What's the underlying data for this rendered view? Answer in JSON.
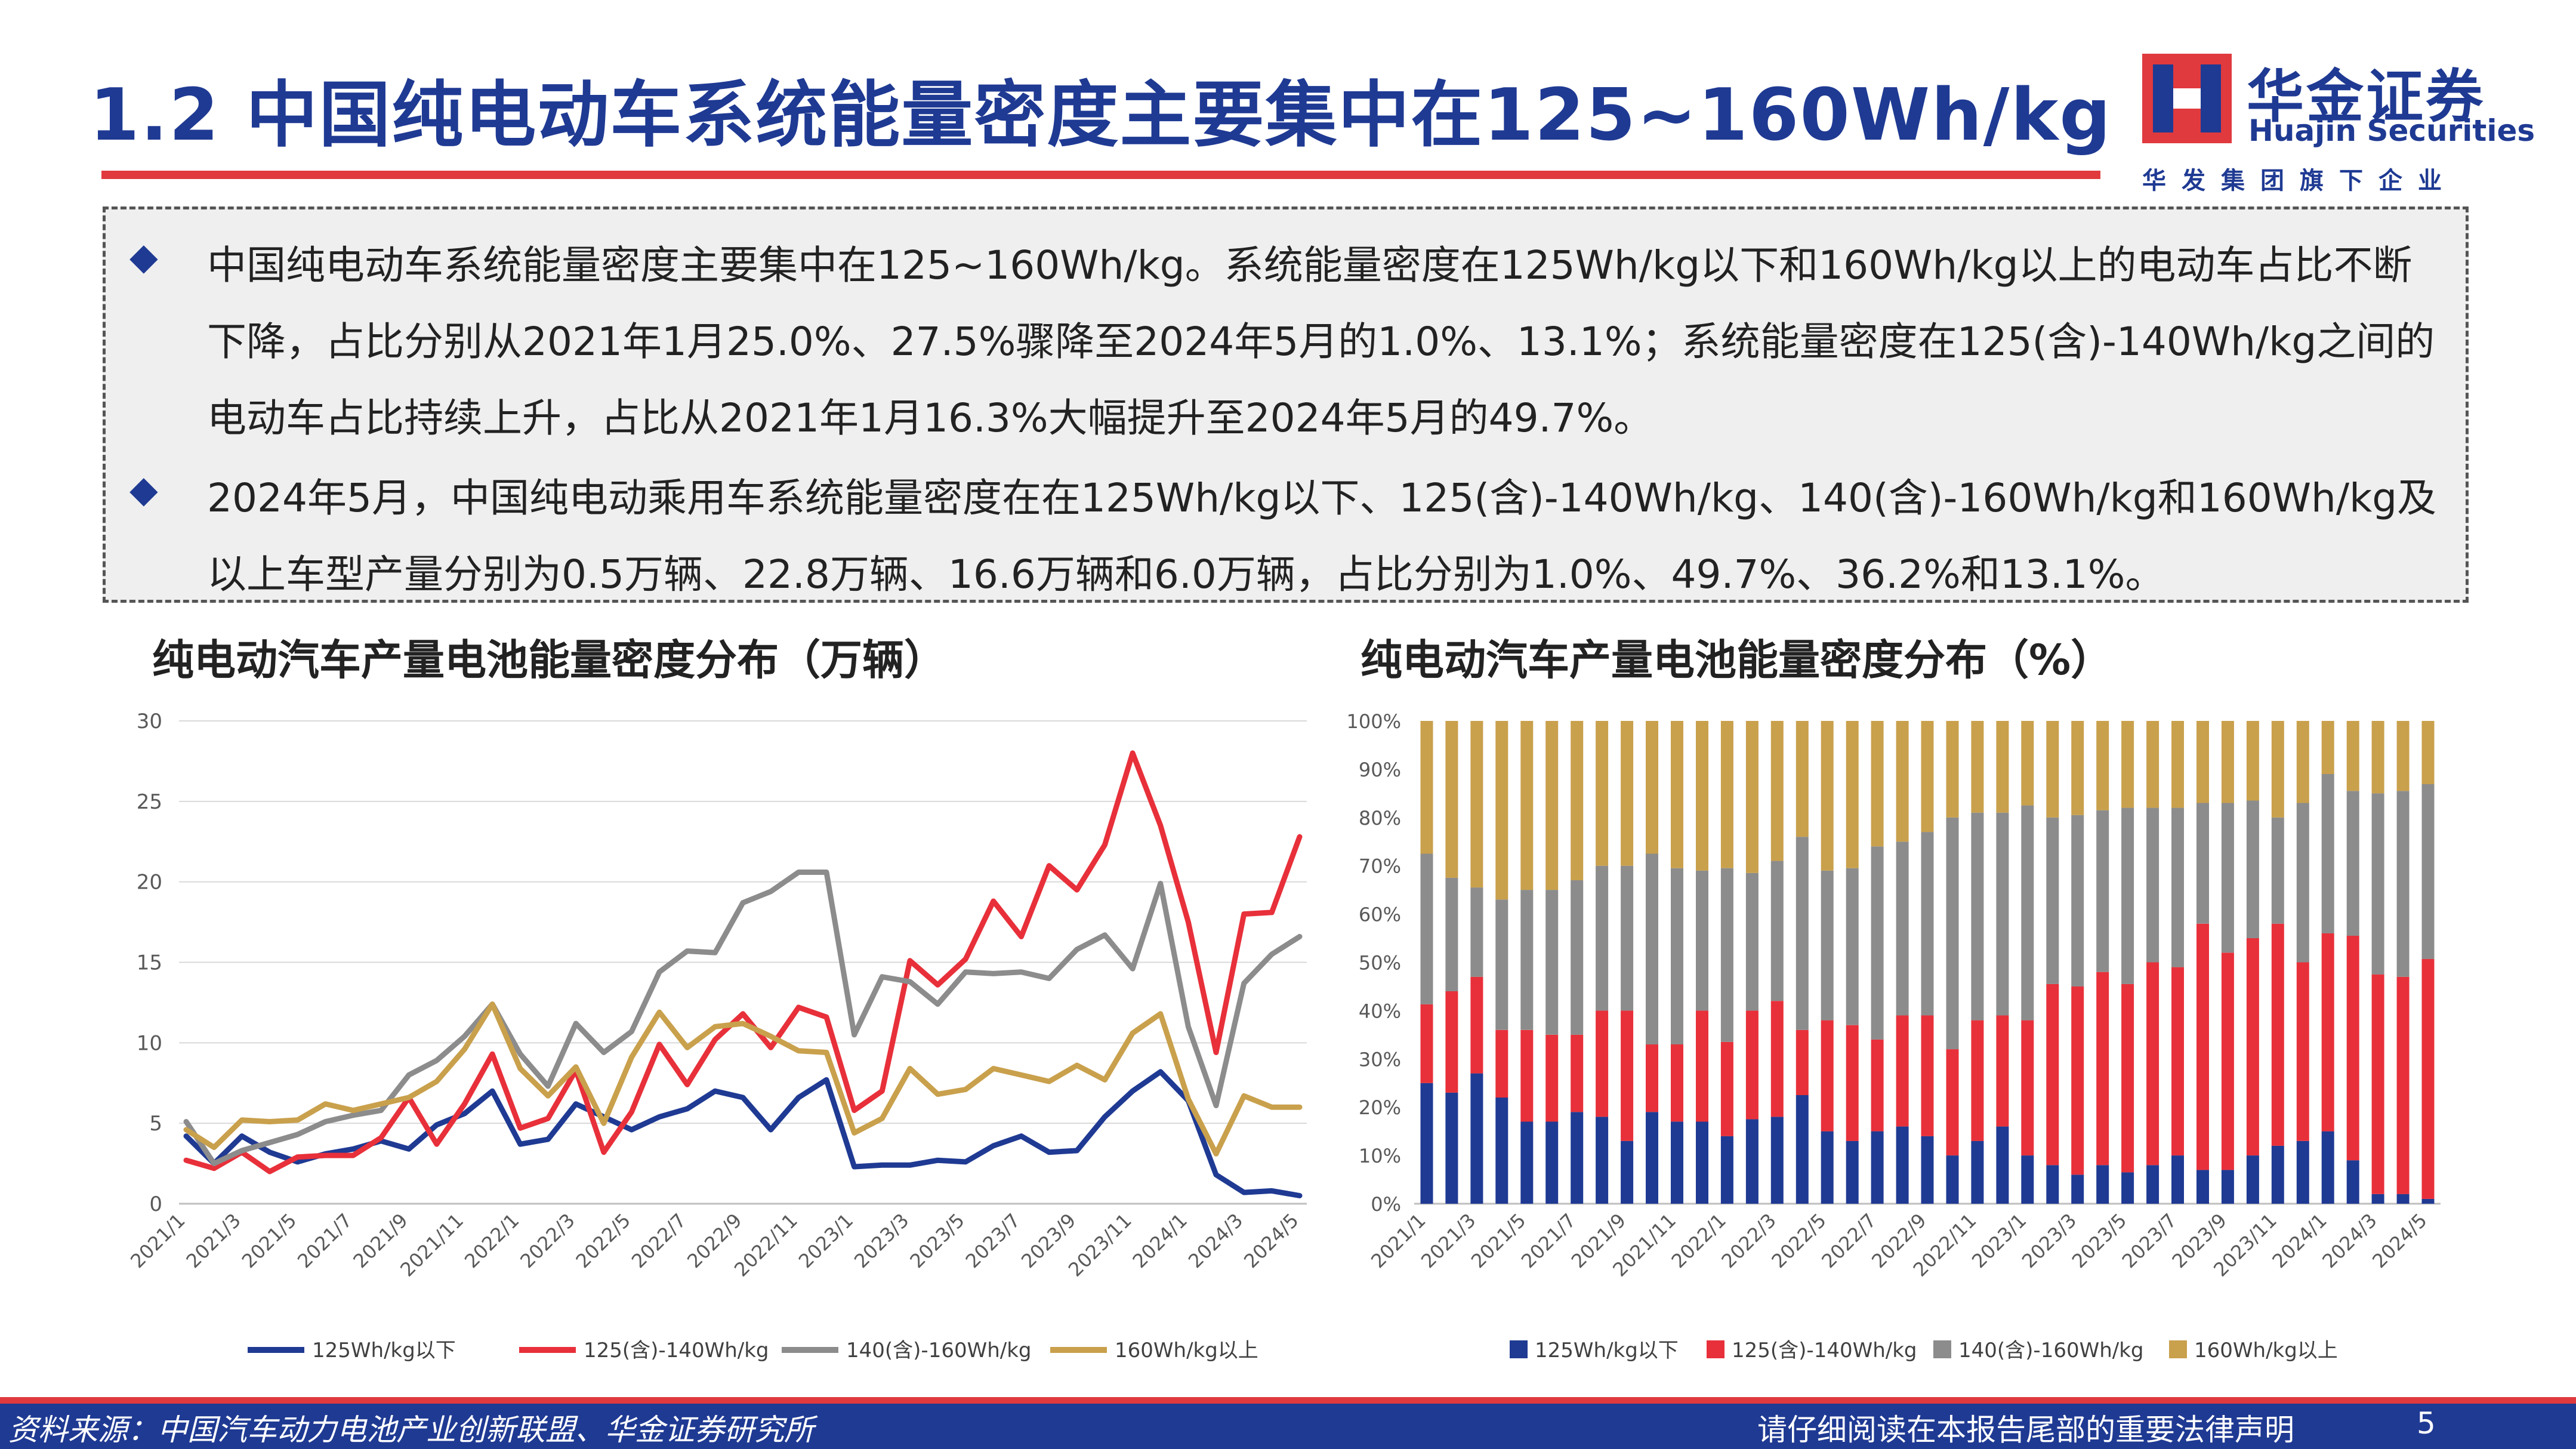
{
  "header": {
    "title": "1.2 中国纯电动车系统能量密度主要集中在125~160Wh/kg",
    "logo_cn": "华金证券",
    "logo_en": "Huajin Securities",
    "logo_sub": "华发集团旗下企业"
  },
  "summary": {
    "bullet1": "中国纯电动车系统能量密度主要集中在125~160Wh/kg。系统能量密度在125Wh/kg以下和160Wh/kg以上的电动车占比不断下降，占比分别从2021年1月25.0%、27.5%骤降至2024年5月的1.0%、13.1%；系统能量密度在125(含)-140Wh/kg之间的电动车占比持续上升，占比从2021年1月16.3%大幅提升至2024年5月的49.7%。",
    "bullet2": "2024年5月，中国纯电动乘用车系统能量密度在在125Wh/kg以下、125(含)-140Wh/kg、140(含)-160Wh/kg和160Wh/kg及以上车型产量分别为0.5万辆、22.8万辆、16.6万辆和6.0万辆，占比分别为1.0%、49.7%、36.2%和13.1%。"
  },
  "footer": {
    "source": "资料来源：中国汽车动力电池产业创新联盟、华金证券研究所",
    "legal": "请仔细阅读在本报告尾部的重要法律声明",
    "page": "5"
  },
  "colors": {
    "blue": "#1f3a93",
    "red": "#e8303a",
    "gray": "#8c8c8c",
    "gold": "#c9a04c"
  },
  "chart_data": [
    {
      "type": "line",
      "title": "纯电动汽车产量电池能量密度分布（万辆）",
      "xlabel": "",
      "ylabel": "",
      "ylim": [
        0,
        30
      ],
      "yticks": [
        "0",
        "5",
        "10",
        "15",
        "20",
        "25",
        "30"
      ],
      "categories": [
        "2021/1",
        "2021/2",
        "2021/3",
        "2021/4",
        "2021/5",
        "2021/6",
        "2021/7",
        "2021/8",
        "2021/9",
        "2021/10",
        "2021/11",
        "2021/12",
        "2022/1",
        "2022/2",
        "2022/3",
        "2022/4",
        "2022/5",
        "2022/6",
        "2022/7",
        "2022/8",
        "2022/9",
        "2022/10",
        "2022/11",
        "2022/12",
        "2023/1",
        "2023/2",
        "2023/3",
        "2023/4",
        "2023/5",
        "2023/6",
        "2023/7",
        "2023/8",
        "2023/9",
        "2023/10",
        "2023/11",
        "2023/12",
        "2024/1",
        "2024/2",
        "2024/3",
        "2024/4",
        "2024/5"
      ],
      "xtick_labels": [
        "2021/1",
        "2021/3",
        "2021/5",
        "2021/7",
        "2021/9",
        "2021/11",
        "2022/1",
        "2022/3",
        "2022/5",
        "2022/7",
        "2022/9",
        "2022/11",
        "2023/1",
        "2023/3",
        "2023/5",
        "2023/7",
        "2023/9",
        "2023/11",
        "2024/1",
        "2024/3",
        "2024/5"
      ],
      "legend_position": "bottom",
      "series": [
        {
          "name": "125Wh/kg以下",
          "color": "#1f3a93",
          "values": [
            4.2,
            2.5,
            4.2,
            3.2,
            2.6,
            3.1,
            3.4,
            3.9,
            3.4,
            4.9,
            5.6,
            7.0,
            3.7,
            4.0,
            6.2,
            5.4,
            4.6,
            5.4,
            5.9,
            7.0,
            6.6,
            4.6,
            6.6,
            7.7,
            2.3,
            2.4,
            2.4,
            2.7,
            2.6,
            3.6,
            4.2,
            3.2,
            3.3,
            5.4,
            7.0,
            8.2,
            6.4,
            1.8,
            0.7,
            0.8,
            0.5
          ]
        },
        {
          "name": "125(含)-140Wh/kg",
          "color": "#e8303a",
          "values": [
            2.7,
            2.2,
            3.2,
            2.0,
            2.9,
            3.0,
            3.0,
            4.1,
            6.6,
            3.7,
            6.2,
            9.3,
            4.7,
            5.3,
            8.3,
            3.2,
            5.7,
            9.9,
            7.4,
            10.2,
            11.8,
            9.7,
            12.2,
            11.6,
            5.8,
            7.0,
            15.1,
            13.6,
            15.2,
            18.8,
            16.6,
            21.0,
            19.5,
            22.3,
            28.0,
            23.5,
            17.5,
            9.4,
            18.0,
            18.1,
            22.8
          ]
        },
        {
          "name": "140(含)-160Wh/kg",
          "color": "#8c8c8c",
          "values": [
            5.1,
            2.5,
            3.3,
            3.8,
            4.3,
            5.1,
            5.5,
            5.8,
            8.0,
            8.9,
            10.4,
            12.4,
            9.3,
            7.3,
            11.2,
            9.4,
            10.7,
            14.4,
            15.7,
            15.6,
            18.7,
            19.4,
            20.6,
            20.6,
            10.5,
            14.1,
            13.8,
            12.4,
            14.4,
            14.3,
            14.4,
            14.0,
            15.8,
            16.7,
            14.6,
            19.9,
            11.0,
            6.1,
            13.7,
            15.5,
            16.6
          ]
        },
        {
          "name": "160Wh/kg以上",
          "color": "#c9a04c",
          "values": [
            4.6,
            3.5,
            5.2,
            5.1,
            5.2,
            6.2,
            5.8,
            6.2,
            6.6,
            7.6,
            9.6,
            12.4,
            8.4,
            6.7,
            8.5,
            5.0,
            9.1,
            11.9,
            9.7,
            11.0,
            11.2,
            10.4,
            9.5,
            9.4,
            4.4,
            5.3,
            8.4,
            6.8,
            7.1,
            8.4,
            8.0,
            7.6,
            8.6,
            7.7,
            10.6,
            11.8,
            6.5,
            3.1,
            6.7,
            6.0,
            6.0
          ]
        }
      ]
    },
    {
      "type": "bar",
      "stacked": true,
      "title": "纯电动汽车产量电池能量密度分布（%）",
      "xlabel": "",
      "ylabel": "",
      "ylim": [
        0,
        100
      ],
      "yticks": [
        "0%",
        "10%",
        "20%",
        "30%",
        "40%",
        "50%",
        "60%",
        "70%",
        "80%",
        "90%",
        "100%"
      ],
      "categories": [
        "2021/1",
        "2021/2",
        "2021/3",
        "2021/4",
        "2021/5",
        "2021/6",
        "2021/7",
        "2021/8",
        "2021/9",
        "2021/10",
        "2021/11",
        "2021/12",
        "2022/1",
        "2022/2",
        "2022/3",
        "2022/4",
        "2022/5",
        "2022/6",
        "2022/7",
        "2022/8",
        "2022/9",
        "2022/10",
        "2022/11",
        "2022/12",
        "2023/1",
        "2023/2",
        "2023/3",
        "2023/4",
        "2023/5",
        "2023/6",
        "2023/7",
        "2023/8",
        "2023/9",
        "2023/10",
        "2023/11",
        "2023/12",
        "2024/1",
        "2024/2",
        "2024/3",
        "2024/4",
        "2024/5"
      ],
      "xtick_labels": [
        "2021/1",
        "2021/3",
        "2021/5",
        "2021/7",
        "2021/9",
        "2021/11",
        "2022/1",
        "2022/3",
        "2022/5",
        "2022/7",
        "2022/9",
        "2022/11",
        "2023/1",
        "2023/3",
        "2023/5",
        "2023/7",
        "2023/9",
        "2023/11",
        "2024/1",
        "2024/3",
        "2024/5"
      ],
      "legend_position": "bottom",
      "series": [
        {
          "name": "125Wh/kg以下",
          "color": "#1f3a93",
          "values": [
            25.0,
            23.0,
            27.0,
            22.0,
            17.0,
            17.0,
            19.0,
            18.0,
            13.0,
            19.0,
            17.0,
            17.0,
            14.0,
            17.5,
            18.0,
            22.5,
            15.0,
            13.0,
            15.0,
            16.0,
            14.0,
            10.0,
            13.0,
            16.0,
            10.0,
            8.0,
            6.0,
            8.0,
            6.5,
            8.0,
            10.0,
            7.0,
            7.0,
            10.0,
            12.0,
            13.0,
            15.0,
            9.0,
            2.0,
            2.0,
            1.0
          ]
        },
        {
          "name": "125(含)-140Wh/kg",
          "color": "#e8303a",
          "values": [
            16.3,
            21.0,
            20.0,
            14.0,
            19.0,
            18.0,
            16.0,
            22.0,
            27.0,
            14.0,
            16.0,
            23.0,
            19.5,
            22.5,
            24.0,
            13.5,
            23.0,
            24.0,
            19.0,
            23.0,
            25.0,
            22.0,
            25.0,
            23.0,
            28.0,
            37.5,
            39.0,
            40.0,
            39.0,
            42.0,
            39.0,
            51.0,
            45.0,
            45.0,
            46.0,
            37.0,
            41.0,
            46.5,
            45.5,
            45.0,
            49.7
          ]
        },
        {
          "name": "140(含)-160Wh/kg",
          "color": "#8c8c8c",
          "values": [
            31.2,
            23.5,
            18.5,
            27.0,
            29.0,
            30.0,
            32.0,
            30.0,
            30.0,
            39.5,
            36.5,
            29.0,
            36.0,
            28.5,
            29.0,
            40.0,
            31.0,
            32.5,
            40.0,
            36.0,
            38.0,
            48.0,
            43.0,
            42.0,
            44.5,
            34.5,
            35.5,
            33.5,
            36.5,
            32.0,
            33.0,
            25.0,
            31.0,
            28.5,
            22.0,
            33.0,
            33.0,
            30.0,
            37.5,
            38.5,
            36.2
          ]
        },
        {
          "name": "160Wh/kg以上",
          "color": "#c9a04c",
          "values": [
            27.5,
            32.5,
            34.5,
            37.0,
            35.0,
            35.0,
            33.0,
            30.0,
            30.0,
            27.5,
            30.5,
            31.0,
            30.5,
            31.5,
            29.0,
            24.0,
            31.0,
            30.5,
            26.0,
            25.0,
            23.0,
            20.0,
            19.0,
            19.0,
            17.5,
            20.0,
            19.5,
            18.5,
            18.0,
            18.0,
            18.0,
            17.0,
            17.0,
            16.5,
            20.0,
            17.0,
            11.0,
            14.5,
            15.0,
            14.5,
            13.1
          ]
        }
      ]
    }
  ]
}
